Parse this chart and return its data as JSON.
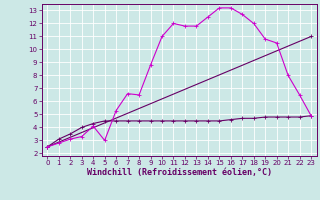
{
  "xlabel": "Windchill (Refroidissement éolien,°C)",
  "bg_color": "#cce8e6",
  "grid_color": "#b0d8d5",
  "line1_x": [
    0,
    1,
    2,
    3,
    4,
    5,
    6,
    7,
    8,
    9,
    10,
    11,
    12,
    13,
    14,
    15,
    16,
    17,
    18,
    19,
    20,
    21,
    22,
    23
  ],
  "line1_y": [
    2.5,
    2.8,
    3.1,
    3.3,
    4.1,
    3.0,
    5.3,
    6.6,
    6.5,
    8.8,
    11.0,
    12.0,
    11.8,
    11.8,
    12.5,
    13.2,
    13.2,
    12.7,
    12.0,
    10.8,
    10.5,
    8.0,
    6.5,
    4.9
  ],
  "line2_x": [
    0,
    23
  ],
  "line2_y": [
    2.5,
    11.0
  ],
  "line3_x": [
    0,
    1,
    2,
    3,
    4,
    5,
    6,
    7,
    8,
    9,
    10,
    11,
    12,
    13,
    14,
    15,
    16,
    17,
    18,
    19,
    20,
    21,
    22,
    23
  ],
  "line3_y": [
    2.5,
    3.1,
    3.5,
    4.0,
    4.3,
    4.5,
    4.5,
    4.5,
    4.5,
    4.5,
    4.5,
    4.5,
    4.5,
    4.5,
    4.5,
    4.5,
    4.6,
    4.7,
    4.7,
    4.8,
    4.8,
    4.8,
    4.8,
    4.9
  ],
  "line1_color": "#cc00cc",
  "line2_color": "#660066",
  "line3_color": "#660066",
  "xlim": [
    -0.5,
    23.5
  ],
  "ylim": [
    1.8,
    13.5
  ],
  "xticks": [
    0,
    1,
    2,
    3,
    4,
    5,
    6,
    7,
    8,
    9,
    10,
    11,
    12,
    13,
    14,
    15,
    16,
    17,
    18,
    19,
    20,
    21,
    22,
    23
  ],
  "yticks": [
    2,
    3,
    4,
    5,
    6,
    7,
    8,
    9,
    10,
    11,
    12,
    13
  ],
  "tick_fontsize": 5.0,
  "label_fontsize": 6.0
}
